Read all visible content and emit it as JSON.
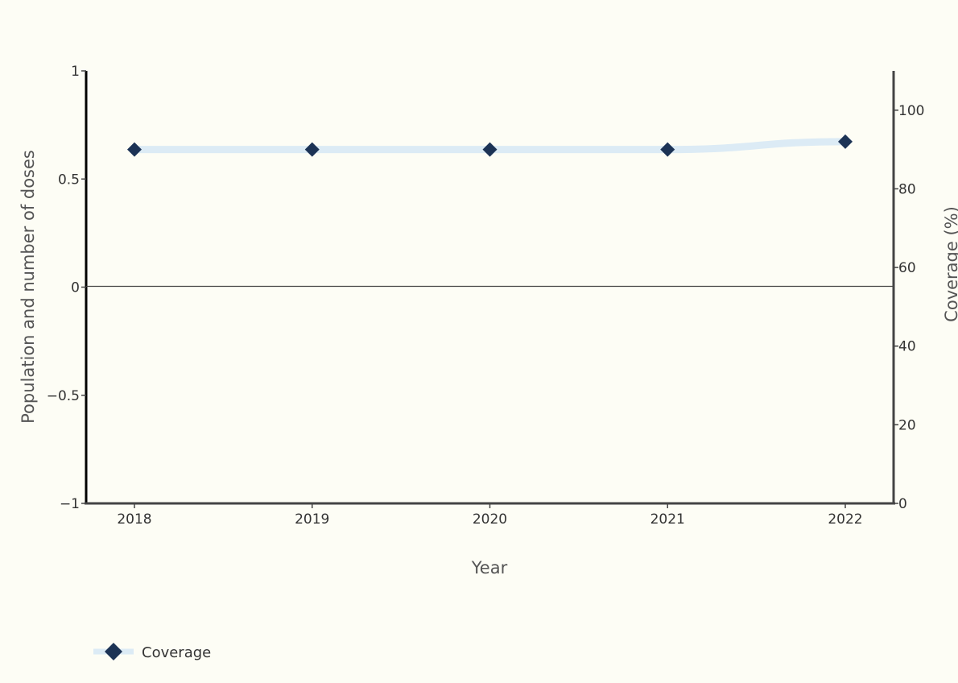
{
  "chart_data": {
    "type": "line",
    "title": "",
    "xlabel": "Year",
    "ylabel_left": "Population and number of doses",
    "ylabel_right": "Coverage (%)",
    "x": [
      "2018",
      "2019",
      "2020",
      "2021",
      "2022"
    ],
    "y_left": {
      "range": [
        -1,
        1
      ],
      "ticks": [
        1,
        0.5,
        0,
        -0.5,
        -1
      ],
      "tick_labels": [
        "1",
        "0.5",
        "0",
        "−0.5",
        "−1"
      ]
    },
    "y_right": {
      "range": [
        0,
        110
      ],
      "ticks": [
        0,
        20,
        40,
        60,
        80,
        100
      ],
      "tick_labels": [
        "0",
        "20",
        "40",
        "60",
        "80",
        "100"
      ]
    },
    "series": [
      {
        "name": "Coverage",
        "axis": "right",
        "values": [
          90,
          90,
          90,
          90,
          92
        ],
        "line_color": "#dcebf5",
        "marker_color": "#1c3355",
        "marker": "diamond"
      }
    ],
    "grid": false,
    "legend": "bottom-left"
  }
}
